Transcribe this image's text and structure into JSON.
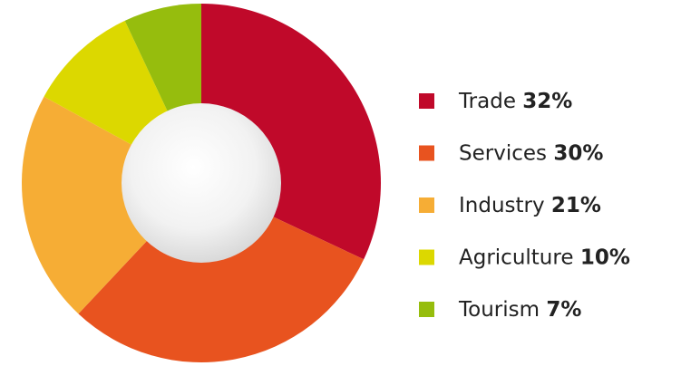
{
  "chart_data": {
    "type": "donut",
    "categories": [
      "Trade",
      "Services",
      "Industry",
      "Agriculture",
      "Tourism"
    ],
    "values": [
      32,
      30,
      21,
      10,
      7
    ],
    "value_labels": [
      "32%",
      "30%",
      "21%",
      "10%",
      "7%"
    ],
    "colors": [
      "#c0092a",
      "#e8531f",
      "#f6ad35",
      "#dcd800",
      "#96bd0d"
    ]
  }
}
